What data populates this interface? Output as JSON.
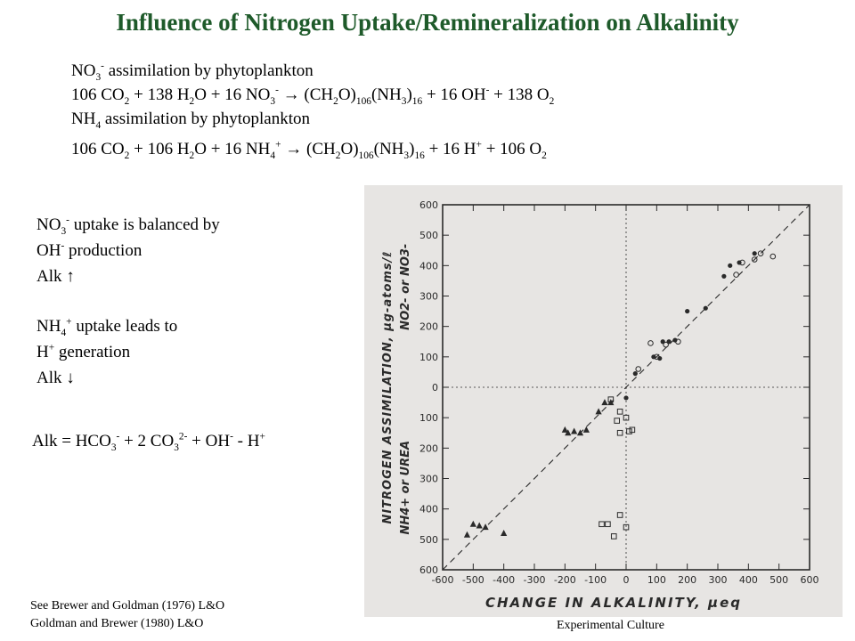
{
  "title": "Influence of Nitrogen Uptake/Remineralization on Alkalinity",
  "equations": {
    "no3_heading": "NO3- assimilation by phytoplankton",
    "no3_reaction": "106 CO2 + 138 H2O + 16 NO3- → (CH2O)106(NH3)16 + 16 OH- + 138 O2",
    "nh4_heading": "NH4 assimilation by phytoplankton",
    "nh4_reaction": "106 CO2 + 106 H2O + 16 NH4+ → (CH2O)106(NH3)16 + 16 H+ + 106 O2"
  },
  "notes": {
    "no3_line1": "NO3- uptake is balanced by",
    "no3_line2": "OH- production",
    "no3_line3": "Alk ↑",
    "nh4_line1": "NH4+ uptake leads to",
    "nh4_line2": "H+ generation",
    "nh4_line3": "Alk ↓"
  },
  "alk_definition": "Alk = HCO3- + 2 CO32- + OH- - H+",
  "references": {
    "ref1": "See Brewer and Goldman (1976) L&O",
    "ref2": "Goldman and Brewer (1980) L&O"
  },
  "caption": "Experimental Culture",
  "colors": {
    "title": "#1e5a2a",
    "scan_background": "#e7e5e3",
    "ink": "#2a2a2a"
  },
  "chart_data": {
    "type": "scatter",
    "xlabel": "CHANGE IN ALKALINITY, μeq",
    "ylabel": "NITROGEN ASSIMILATION, μg-atoms/ℓ",
    "ylabel_upper": "NO2- or NO3-",
    "ylabel_lower": "NH4+ or UREA",
    "xlim": [
      -600,
      600
    ],
    "ylim": [
      -600,
      600
    ],
    "x_ticks": [
      "-600",
      "-500",
      "-400",
      "-300",
      "-200",
      "-100",
      "0",
      "100",
      "200",
      "300",
      "400",
      "500",
      "600"
    ],
    "y_tick_labels": [
      "600",
      "500",
      "400",
      "300",
      "200",
      "100",
      "0",
      "100",
      "200",
      "300",
      "400",
      "500",
      "600"
    ],
    "grid": false,
    "reference_line": "1:1 dashed",
    "series": [
      {
        "marker": "filled-circle",
        "points": [
          [
            160,
            155
          ],
          [
            200,
            250
          ],
          [
            260,
            260
          ],
          [
            320,
            365
          ],
          [
            340,
            400
          ],
          [
            370,
            410
          ],
          [
            420,
            440
          ],
          [
            90,
            100
          ],
          [
            110,
            95
          ],
          [
            120,
            150
          ],
          [
            140,
            150
          ],
          [
            0,
            -35
          ],
          [
            30,
            45
          ]
        ]
      },
      {
        "marker": "open-circle",
        "points": [
          [
            360,
            370
          ],
          [
            380,
            410
          ],
          [
            420,
            420
          ],
          [
            440,
            440
          ],
          [
            480,
            430
          ],
          [
            80,
            145
          ],
          [
            100,
            100
          ],
          [
            130,
            140
          ],
          [
            170,
            150
          ],
          [
            40,
            60
          ]
        ]
      },
      {
        "marker": "filled-triangle",
        "points": [
          [
            -520,
            -485
          ],
          [
            -500,
            -450
          ],
          [
            -480,
            -455
          ],
          [
            -460,
            -460
          ],
          [
            -400,
            -480
          ],
          [
            -200,
            -140
          ],
          [
            -190,
            -150
          ],
          [
            -170,
            -145
          ],
          [
            -150,
            -150
          ],
          [
            -130,
            -140
          ],
          [
            -90,
            -80
          ],
          [
            -70,
            -50
          ],
          [
            -50,
            -50
          ]
        ]
      },
      {
        "marker": "open-square",
        "points": [
          [
            -50,
            -40
          ],
          [
            -20,
            -80
          ],
          [
            -30,
            -110
          ],
          [
            0,
            -100
          ],
          [
            10,
            -145
          ],
          [
            -20,
            -150
          ],
          [
            20,
            -140
          ],
          [
            -80,
            -450
          ],
          [
            -60,
            -450
          ],
          [
            -40,
            -490
          ],
          [
            -20,
            -420
          ],
          [
            0,
            -460
          ]
        ]
      }
    ]
  }
}
